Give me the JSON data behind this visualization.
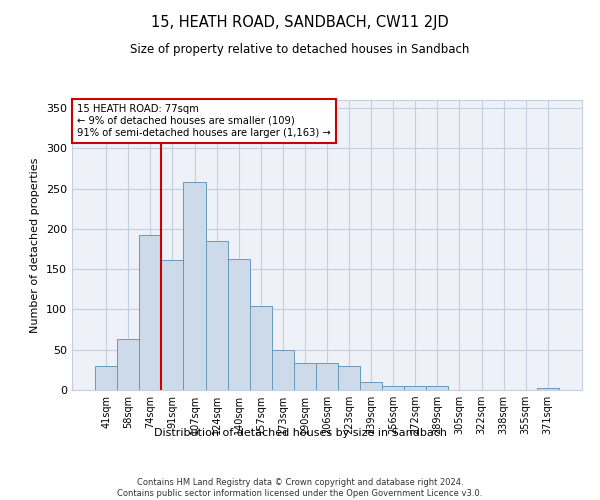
{
  "title": "15, HEATH ROAD, SANDBACH, CW11 2JD",
  "subtitle": "Size of property relative to detached houses in Sandbach",
  "xlabel": "Distribution of detached houses by size in Sandbach",
  "ylabel": "Number of detached properties",
  "bar_labels": [
    "41sqm",
    "58sqm",
    "74sqm",
    "91sqm",
    "107sqm",
    "124sqm",
    "140sqm",
    "157sqm",
    "173sqm",
    "190sqm",
    "206sqm",
    "223sqm",
    "239sqm",
    "256sqm",
    "272sqm",
    "289sqm",
    "305sqm",
    "322sqm",
    "338sqm",
    "355sqm",
    "371sqm"
  ],
  "bar_values": [
    30,
    63,
    193,
    161,
    258,
    185,
    163,
    104,
    50,
    33,
    33,
    30,
    10,
    5,
    5,
    5,
    0,
    0,
    0,
    0,
    3
  ],
  "bar_color": "#ccdaea",
  "bar_edge_color": "#6699bb",
  "vline_color": "#cc0000",
  "annotation_box_color": "#ffffff",
  "annotation_box_edge": "#cc0000",
  "annotation_label": "15 HEATH ROAD: 77sqm",
  "annotation_line1": "← 9% of detached houses are smaller (109)",
  "annotation_line2": "91% of semi-detached houses are larger (1,163) →",
  "background_color": "#eef2f8",
  "grid_color": "#c5d0de",
  "ylim": [
    0,
    360
  ],
  "yticks": [
    0,
    50,
    100,
    150,
    200,
    250,
    300,
    350
  ],
  "footer": "Contains HM Land Registry data © Crown copyright and database right 2024.\nContains public sector information licensed under the Open Government Licence v3.0."
}
